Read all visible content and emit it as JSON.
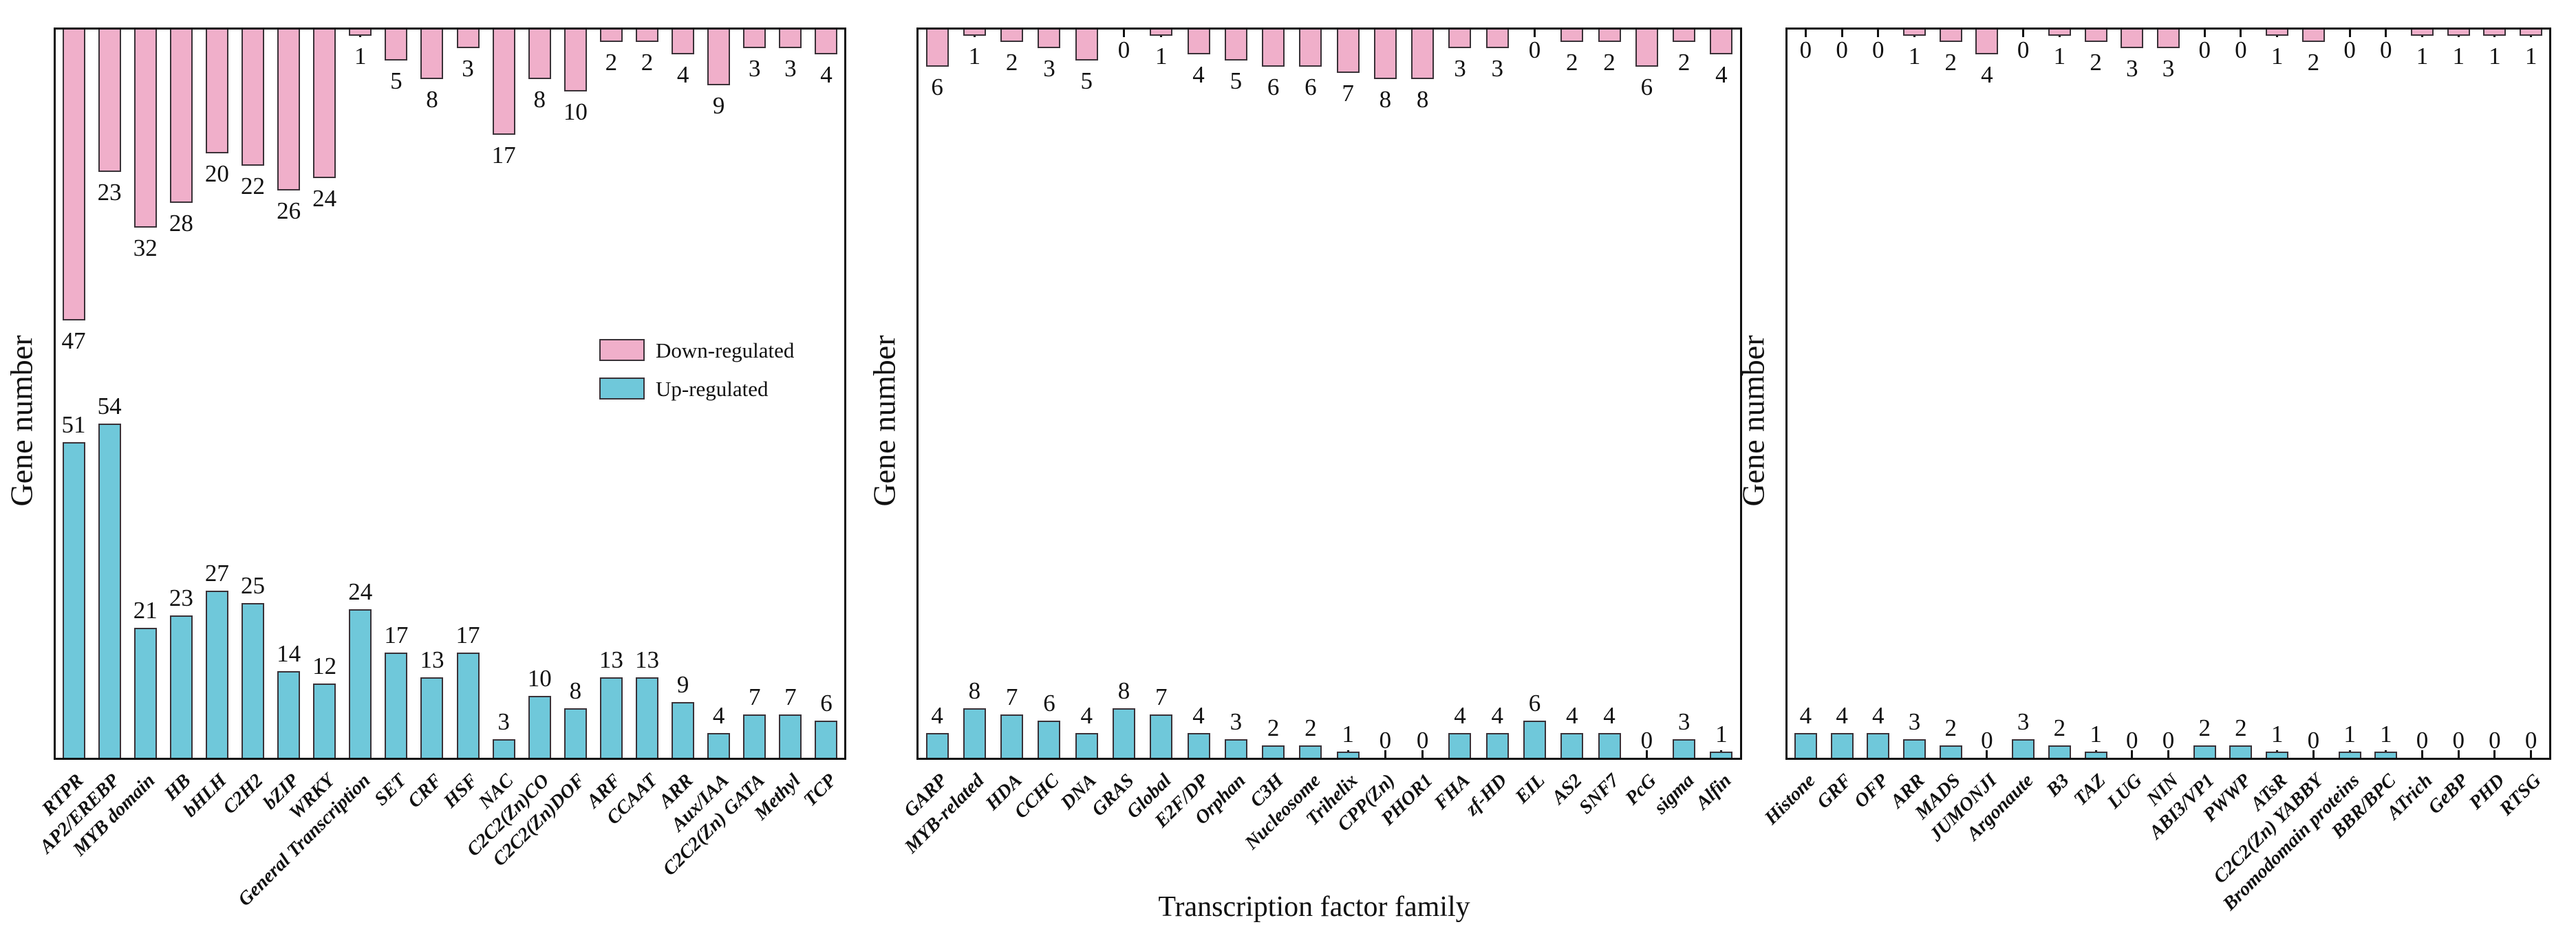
{
  "figure": {
    "y_axis_label": "Gene number",
    "x_axis_title": "Transcription factor family",
    "colors": {
      "down_fill": "#F0AFCA",
      "down_border": "#3a3238",
      "up_fill": "#6FC8DA",
      "up_border": "#3a3238",
      "axis": "#111111"
    },
    "legend": {
      "items": [
        {
          "label": "Down-regulated",
          "color": "#F0AFCA"
        },
        {
          "label": "Up-regulated",
          "color": "#6FC8DA"
        }
      ]
    }
  },
  "chart_data": [
    {
      "type": "bar",
      "panel": 1,
      "orientation": "diverging-vertical",
      "ylabel": "Gene number",
      "xlabel": "Transcription factor family",
      "value_labels": "at bar ends",
      "ylim": [
        0,
        54
      ],
      "categories": [
        "RTPR",
        "AP2/EREBP",
        "MYB domain",
        "HB",
        "bHLH",
        "C2H2",
        "bZIP",
        "WRKY",
        "General Transcription",
        "SET",
        "CRF",
        "HSF",
        "NAC",
        "C2C2(Zn)CO",
        "C2C2(Zn)DOF",
        "ARF",
        "CCAAT",
        "ARR",
        "Aux/IAA",
        "C2C2(Zn) GATA",
        "Methyl",
        "TCP"
      ],
      "series": [
        {
          "name": "Down-regulated",
          "direction": "hanging-from-top",
          "color": "#F0AFCA",
          "values": [
            47,
            23,
            32,
            28,
            20,
            22,
            26,
            24,
            1,
            5,
            8,
            3,
            17,
            8,
            10,
            2,
            2,
            4,
            9,
            3,
            3,
            4
          ]
        },
        {
          "name": "Up-regulated",
          "direction": "rising-from-bottom",
          "color": "#6FC8DA",
          "values": [
            51,
            54,
            21,
            23,
            27,
            25,
            14,
            12,
            24,
            17,
            13,
            17,
            3,
            10,
            8,
            13,
            13,
            9,
            4,
            7,
            7,
            6
          ]
        }
      ]
    },
    {
      "type": "bar",
      "panel": 2,
      "orientation": "diverging-vertical",
      "ylabel": "Gene number",
      "xlabel": "Transcription factor family",
      "value_labels": "at bar ends",
      "ylim": [
        0,
        8
      ],
      "categories": [
        "GARP",
        "MYB-related",
        "HDA",
        "CCHC",
        "DNA",
        "GRAS",
        "Global",
        "E2F/DP",
        "Orphan",
        "C3H",
        "Nucleosome",
        "Trihelix",
        "CPP(Zn)",
        "PHOR1",
        "FHA",
        "zf-HD",
        "EIL",
        "AS2",
        "SNF7",
        "PcG",
        "sigma",
        "Alfin"
      ],
      "series": [
        {
          "name": "Down-regulated",
          "direction": "hanging-from-top",
          "color": "#F0AFCA",
          "values": [
            6,
            1,
            2,
            3,
            5,
            0,
            1,
            4,
            5,
            6,
            6,
            7,
            8,
            8,
            3,
            3,
            0,
            2,
            2,
            6,
            2,
            4
          ]
        },
        {
          "name": "Up-regulated",
          "direction": "rising-from-bottom",
          "color": "#6FC8DA",
          "values": [
            4,
            8,
            7,
            6,
            4,
            8,
            7,
            4,
            3,
            2,
            2,
            1,
            0,
            0,
            4,
            4,
            6,
            4,
            4,
            0,
            3,
            1
          ]
        }
      ]
    },
    {
      "type": "bar",
      "panel": 3,
      "orientation": "diverging-vertical",
      "ylabel": "Gene number",
      "xlabel": "Transcription factor family",
      "value_labels": "at bar ends",
      "ylim": [
        0,
        4
      ],
      "categories": [
        "Histone",
        "GRF",
        "OFP",
        "ARR",
        "MADS",
        "JUMONJI",
        "Argonaute",
        "B3",
        "TAZ",
        "LUG",
        "NIN",
        "ABI3/VP1",
        "PWWP",
        "ATsR",
        "C2C2(Zn) YABBY",
        "Bromodomain proteins",
        "BBR/BPC",
        "ATrich",
        "GeBP",
        "PHD",
        "RTSG"
      ],
      "series": [
        {
          "name": "Down-regulated",
          "direction": "hanging-from-top",
          "color": "#F0AFCA",
          "values": [
            0,
            0,
            0,
            1,
            2,
            4,
            0,
            1,
            2,
            3,
            3,
            0,
            0,
            1,
            2,
            0,
            0,
            1,
            1,
            1,
            1
          ]
        },
        {
          "name": "Up-regulated",
          "direction": "rising-from-bottom",
          "color": "#6FC8DA",
          "values": [
            4,
            4,
            4,
            3,
            2,
            0,
            3,
            2,
            1,
            0,
            0,
            2,
            2,
            1,
            0,
            1,
            1,
            0,
            0,
            0,
            0
          ]
        }
      ]
    }
  ]
}
